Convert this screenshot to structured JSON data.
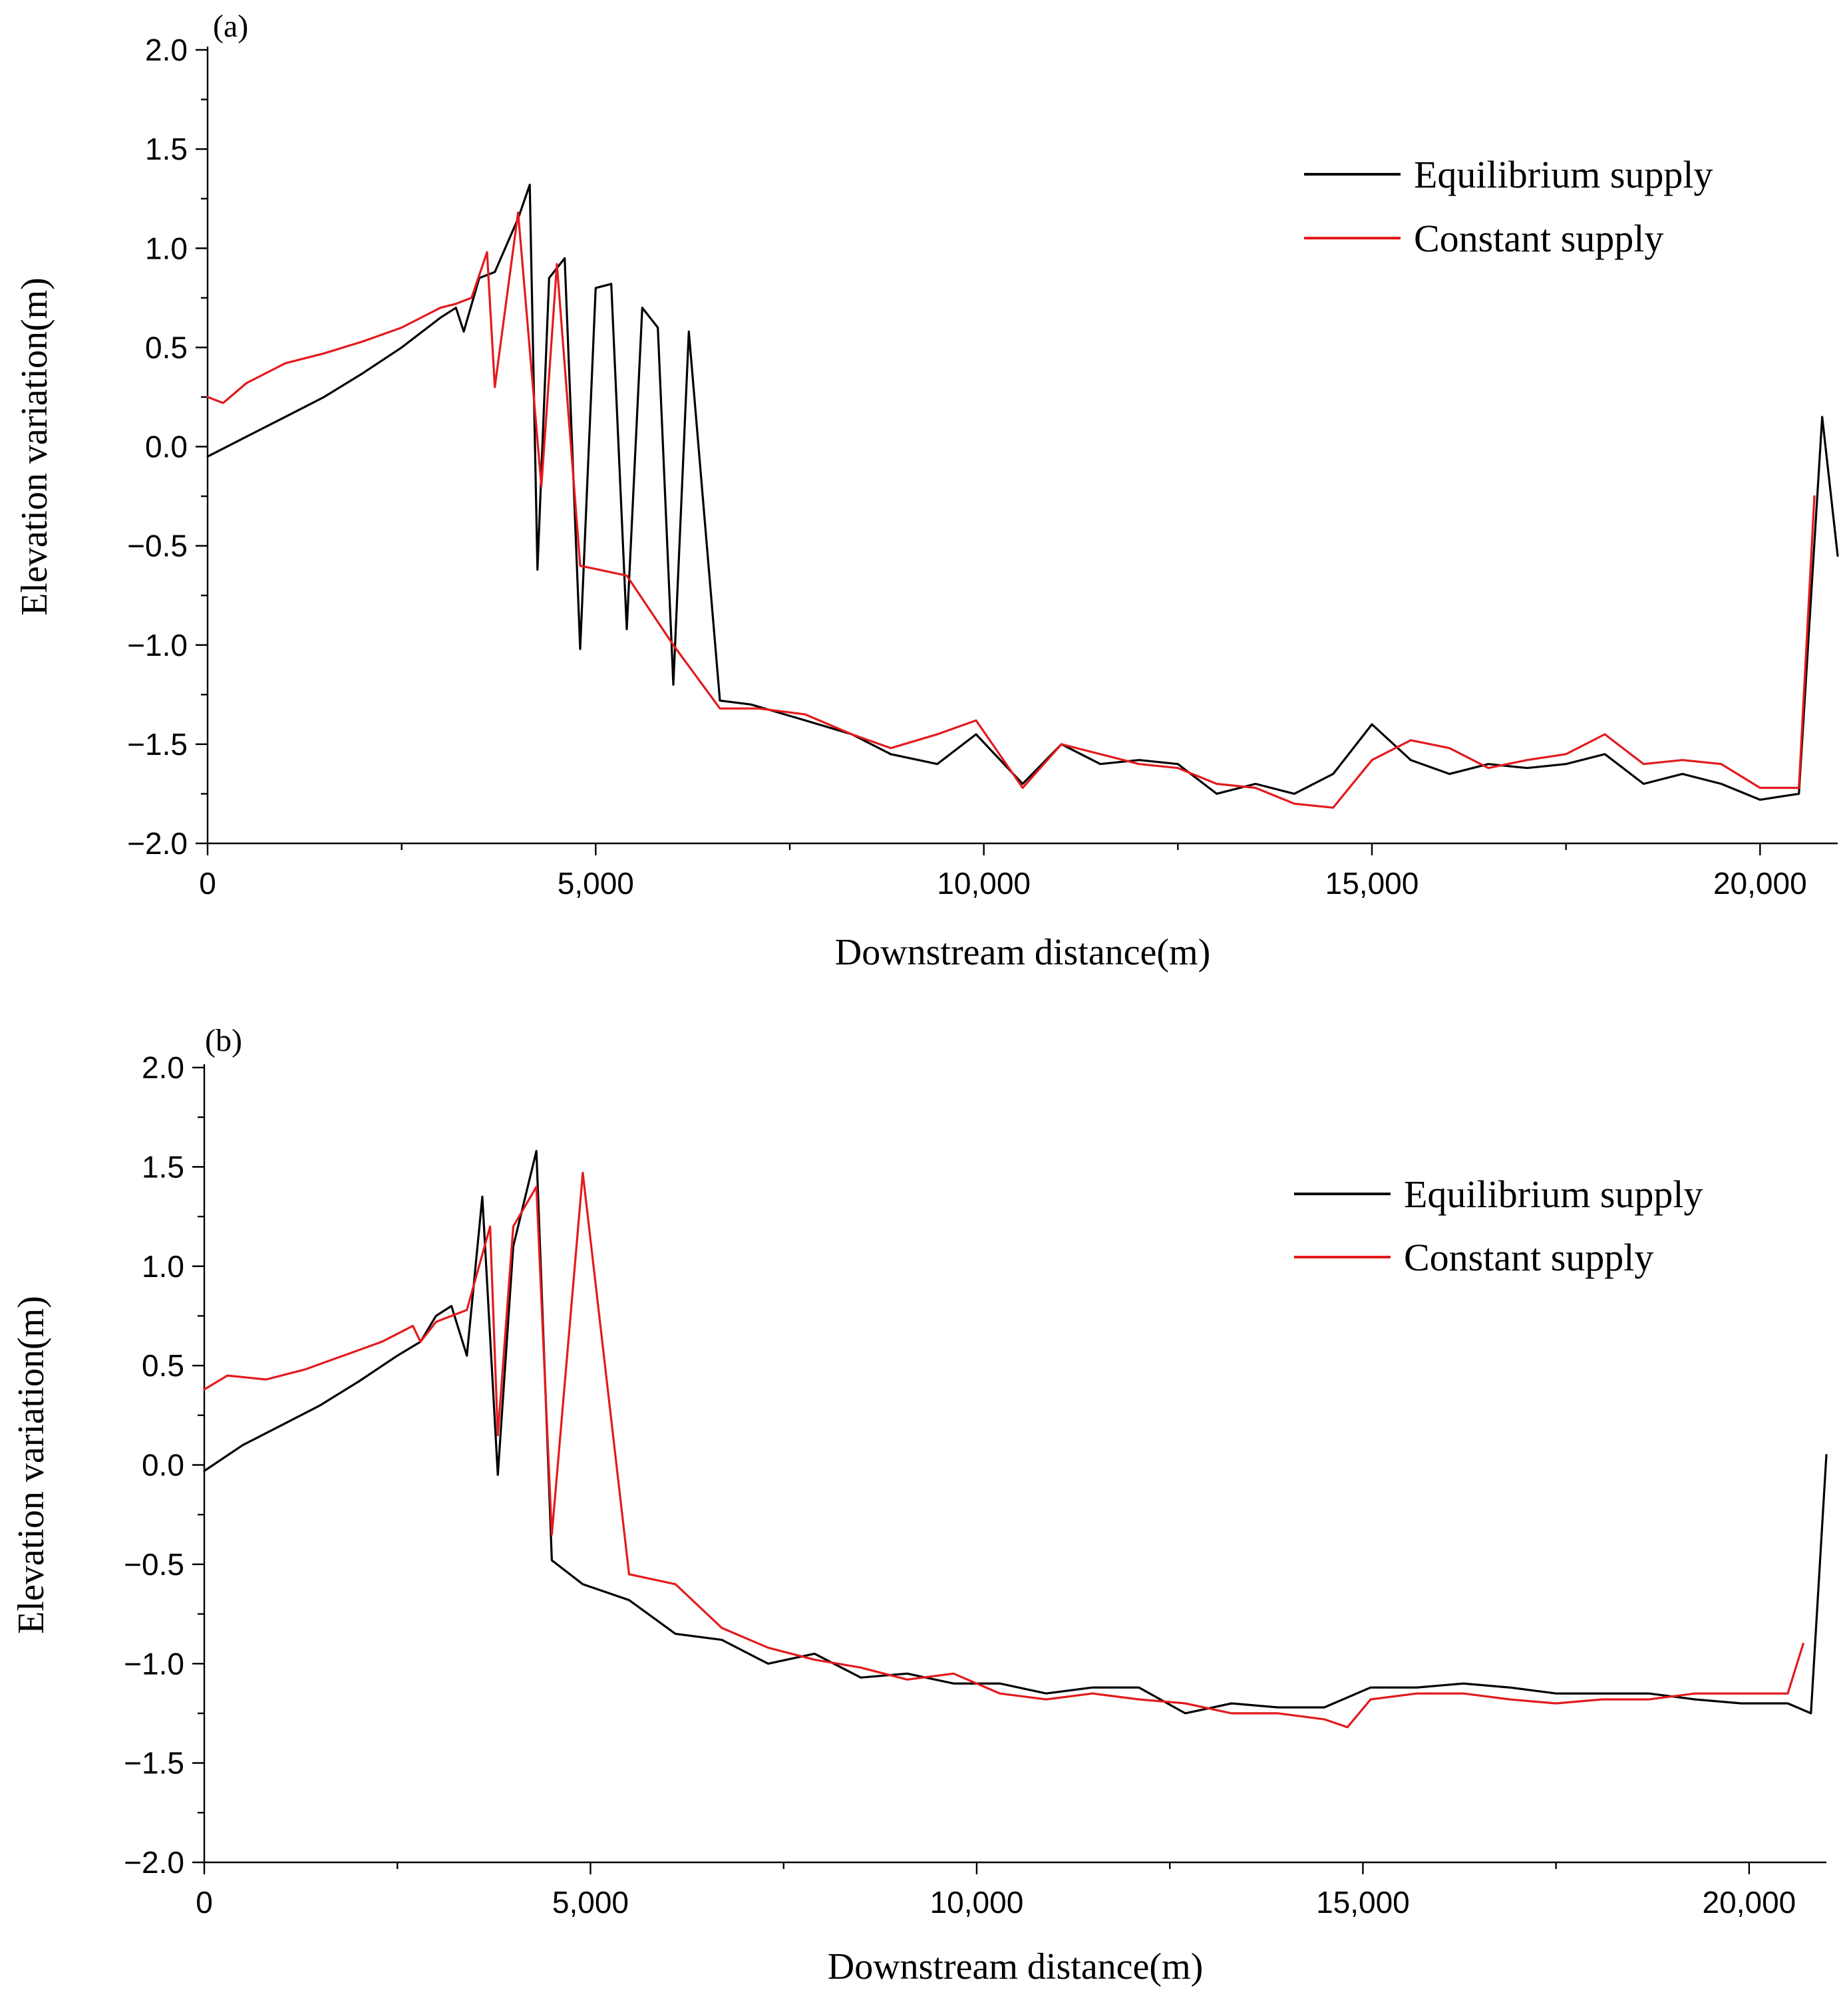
{
  "chart_data": [
    {
      "panel_label": "(a)",
      "type": "line",
      "xlabel": "Downstream distance(m)",
      "ylabel": "Elevation variation(m)",
      "xlim": [
        0,
        21000
      ],
      "ylim": [
        -2.0,
        2.0
      ],
      "xticks": [
        0,
        5000,
        10000,
        15000,
        20000
      ],
      "xtick_labels": [
        "0",
        "5,000",
        "10,000",
        "15,000",
        "20,000"
      ],
      "yticks": [
        -2.0,
        -1.5,
        -1.0,
        -0.5,
        0.0,
        0.5,
        1.0,
        1.5,
        2.0
      ],
      "ytick_labels": [
        "−2.0",
        "−1.5",
        "−1.0",
        "−0.5",
        "0.0",
        "0.5",
        "1.0",
        "1.5",
        "2.0"
      ],
      "grid": false,
      "legend_position": "top-right",
      "series": [
        {
          "name": "Equilibrium supply",
          "color": "#000000",
          "x": [
            0,
            500,
            1000,
            1500,
            2000,
            2500,
            3000,
            3200,
            3300,
            3500,
            3700,
            4000,
            4150,
            4250,
            4400,
            4600,
            4800,
            5000,
            5200,
            5400,
            5600,
            5800,
            6000,
            6200,
            6600,
            7000,
            7700,
            8300,
            8800,
            9400,
            9900,
            10500,
            11000,
            11500,
            12000,
            12500,
            13000,
            13500,
            14000,
            14500,
            15000,
            15500,
            16000,
            16500,
            17000,
            17500,
            18000,
            18500,
            19000,
            19500,
            20000,
            20500,
            20800,
            21000
          ],
          "y": [
            -0.05,
            0.05,
            0.15,
            0.25,
            0.37,
            0.5,
            0.65,
            0.7,
            0.58,
            0.85,
            0.88,
            1.15,
            1.32,
            -0.62,
            0.85,
            0.95,
            -1.02,
            0.8,
            0.82,
            -0.92,
            0.7,
            0.6,
            -1.2,
            0.58,
            -1.28,
            -1.3,
            -1.38,
            -1.45,
            -1.55,
            -1.6,
            -1.45,
            -1.7,
            -1.5,
            -1.6,
            -1.58,
            -1.6,
            -1.75,
            -1.7,
            -1.75,
            -1.65,
            -1.4,
            -1.58,
            -1.65,
            -1.6,
            -1.62,
            -1.6,
            -1.55,
            -1.7,
            -1.65,
            -1.7,
            -1.78,
            -1.75,
            0.15,
            -0.55
          ]
        },
        {
          "name": "Constant supply",
          "color": "#e31a1c",
          "x": [
            0,
            200,
            500,
            1000,
            1500,
            2000,
            2500,
            3000,
            3200,
            3400,
            3600,
            3700,
            4000,
            4300,
            4500,
            4800,
            5400,
            6000,
            6600,
            7100,
            7700,
            8300,
            8800,
            9400,
            9900,
            10500,
            11000,
            11500,
            12000,
            12500,
            13000,
            13500,
            14000,
            14500,
            15000,
            15500,
            16000,
            16500,
            17000,
            17500,
            18000,
            18500,
            19000,
            19500,
            20000,
            20500,
            20700
          ],
          "y": [
            0.25,
            0.22,
            0.32,
            0.42,
            0.47,
            0.53,
            0.6,
            0.7,
            0.72,
            0.75,
            0.98,
            0.3,
            1.18,
            -0.2,
            0.92,
            -0.6,
            -0.65,
            -1.0,
            -1.32,
            -1.32,
            -1.35,
            -1.45,
            -1.52,
            -1.45,
            -1.38,
            -1.72,
            -1.5,
            -1.55,
            -1.6,
            -1.62,
            -1.7,
            -1.72,
            -1.8,
            -1.82,
            -1.58,
            -1.48,
            -1.52,
            -1.62,
            -1.58,
            -1.55,
            -1.45,
            -1.6,
            -1.58,
            -1.6,
            -1.72,
            -1.72,
            -0.25
          ]
        }
      ]
    },
    {
      "panel_label": "(b)",
      "type": "line",
      "xlabel": "Downstream distance(m)",
      "ylabel": "Elevation variation(m)",
      "xlim": [
        0,
        21000
      ],
      "ylim": [
        -2.0,
        2.0
      ],
      "xticks": [
        0,
        5000,
        10000,
        15000,
        20000
      ],
      "xtick_labels": [
        "0",
        "5,000",
        "10,000",
        "15,000",
        "20,000"
      ],
      "yticks": [
        -2.0,
        -1.5,
        -1.0,
        -0.5,
        0.0,
        0.5,
        1.0,
        1.5,
        2.0
      ],
      "ytick_labels": [
        "−2.0",
        "−1.5",
        "−1.0",
        "−0.5",
        "0.0",
        "0.5",
        "1.0",
        "1.5",
        "2.0"
      ],
      "grid": false,
      "legend_position": "top-right",
      "series": [
        {
          "name": "Equilibrium supply",
          "color": "#000000",
          "x": [
            0,
            500,
            1000,
            1500,
            2000,
            2500,
            2800,
            3000,
            3200,
            3400,
            3600,
            3800,
            4000,
            4300,
            4500,
            4900,
            5500,
            6100,
            6700,
            7300,
            7900,
            8500,
            9100,
            9700,
            10300,
            10900,
            11500,
            12100,
            12700,
            13300,
            13900,
            14500,
            15100,
            15700,
            16300,
            16900,
            17500,
            18100,
            18700,
            19300,
            19900,
            20500,
            20800,
            21000
          ],
          "y": [
            -0.03,
            0.1,
            0.2,
            0.3,
            0.42,
            0.55,
            0.62,
            0.75,
            0.8,
            0.55,
            1.35,
            -0.05,
            1.1,
            1.58,
            -0.48,
            -0.6,
            -0.68,
            -0.85,
            -0.88,
            -1.0,
            -0.95,
            -1.07,
            -1.05,
            -1.1,
            -1.1,
            -1.15,
            -1.12,
            -1.12,
            -1.25,
            -1.2,
            -1.22,
            -1.22,
            -1.12,
            -1.12,
            -1.1,
            -1.12,
            -1.15,
            -1.15,
            -1.15,
            -1.18,
            -1.2,
            -1.2,
            -1.25,
            0.05
          ]
        },
        {
          "name": "Constant supply",
          "color": "#e31a1c",
          "x": [
            0,
            300,
            800,
            1300,
            1800,
            2300,
            2700,
            2800,
            3000,
            3400,
            3700,
            3800,
            4000,
            4300,
            4500,
            4900,
            5500,
            6100,
            6700,
            7300,
            7900,
            8500,
            9100,
            9700,
            10300,
            10900,
            11500,
            12100,
            12700,
            13300,
            13900,
            14500,
            14800,
            15100,
            15700,
            16300,
            16900,
            17500,
            18100,
            18700,
            19300,
            19900,
            20500,
            20700
          ],
          "y": [
            0.38,
            0.45,
            0.43,
            0.48,
            0.55,
            0.62,
            0.7,
            0.62,
            0.72,
            0.78,
            1.2,
            0.15,
            1.2,
            1.4,
            -0.35,
            1.47,
            -0.55,
            -0.6,
            -0.82,
            -0.92,
            -0.98,
            -1.02,
            -1.08,
            -1.05,
            -1.15,
            -1.18,
            -1.15,
            -1.18,
            -1.2,
            -1.25,
            -1.25,
            -1.28,
            -1.32,
            -1.18,
            -1.15,
            -1.15,
            -1.18,
            -1.2,
            -1.18,
            -1.18,
            -1.15,
            -1.15,
            -1.15,
            -0.9
          ]
        }
      ]
    }
  ]
}
